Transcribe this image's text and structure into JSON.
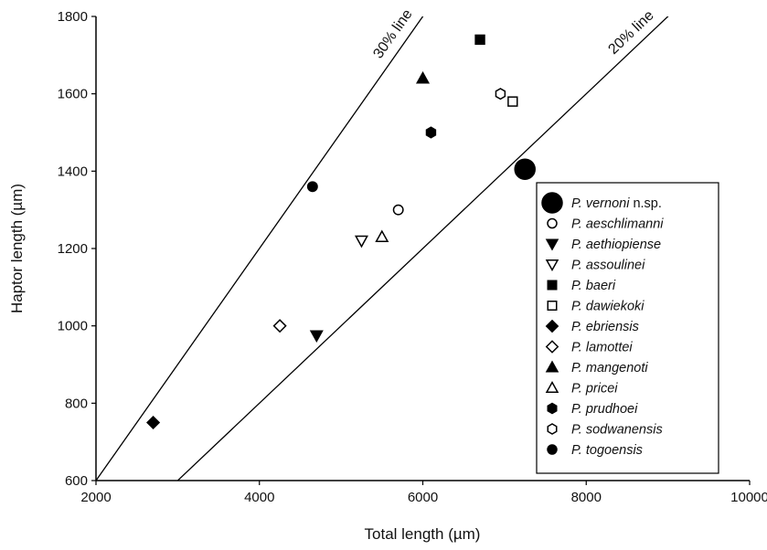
{
  "chart_data": {
    "type": "scatter",
    "xlabel": "Total length (µm)",
    "ylabel": "Haptor length (µm)",
    "xlim": [
      2000,
      10000
    ],
    "ylim": [
      600,
      1800
    ],
    "xticks": [
      "2000",
      "4000",
      "6000",
      "8000",
      "10000"
    ],
    "yticks": [
      "600",
      "800",
      "1000",
      "1200",
      "1400",
      "1600",
      "1800"
    ],
    "grid": false,
    "legend_position": "bottom-right",
    "reference_lines": [
      {
        "label": "30% line",
        "slope": 0.3
      },
      {
        "label": "20% line",
        "slope": 0.2
      }
    ],
    "series": [
      {
        "genus": "P.",
        "species": "vernoni",
        "suffix": " n.sp.",
        "marker": "circle-filled",
        "size": "large",
        "points": [
          {
            "x": 7250,
            "y": 1405
          }
        ]
      },
      {
        "genus": "P.",
        "species": "aeschlimanni",
        "suffix": "",
        "marker": "circle-open",
        "size": "normal",
        "points": [
          {
            "x": 5700,
            "y": 1300
          }
        ]
      },
      {
        "genus": "P.",
        "species": "aethiopiense",
        "suffix": "",
        "marker": "triangle-down-filled",
        "size": "normal",
        "points": [
          {
            "x": 4700,
            "y": 975
          }
        ]
      },
      {
        "genus": "P.",
        "species": "assoulinei",
        "suffix": "",
        "marker": "triangle-down-open",
        "size": "normal",
        "points": [
          {
            "x": 5250,
            "y": 1220
          }
        ]
      },
      {
        "genus": "P.",
        "species": "baeri",
        "suffix": "",
        "marker": "square-filled",
        "size": "normal",
        "points": [
          {
            "x": 6700,
            "y": 1740
          }
        ]
      },
      {
        "genus": "P.",
        "species": "dawiekoki",
        "suffix": "",
        "marker": "square-open",
        "size": "normal",
        "points": [
          {
            "x": 7100,
            "y": 1580
          }
        ]
      },
      {
        "genus": "P.",
        "species": "ebriensis",
        "suffix": "",
        "marker": "diamond-filled",
        "size": "normal",
        "points": [
          {
            "x": 2700,
            "y": 750
          }
        ]
      },
      {
        "genus": "P.",
        "species": "lamottei",
        "suffix": "",
        "marker": "diamond-open",
        "size": "normal",
        "points": [
          {
            "x": 4250,
            "y": 1000
          }
        ]
      },
      {
        "genus": "P.",
        "species": "mangenoti",
        "suffix": "",
        "marker": "triangle-up-filled",
        "size": "normal",
        "points": [
          {
            "x": 6000,
            "y": 1640
          }
        ]
      },
      {
        "genus": "P.",
        "species": "pricei",
        "suffix": "",
        "marker": "triangle-up-open",
        "size": "normal",
        "points": [
          {
            "x": 5500,
            "y": 1230
          }
        ]
      },
      {
        "genus": "P.",
        "species": "prudhoei",
        "suffix": "",
        "marker": "hexagon-filled",
        "size": "normal",
        "points": [
          {
            "x": 6100,
            "y": 1500
          }
        ]
      },
      {
        "genus": "P.",
        "species": "sodwanensis",
        "suffix": "",
        "marker": "hexagon-open",
        "size": "normal",
        "points": [
          {
            "x": 6950,
            "y": 1600
          }
        ]
      },
      {
        "genus": "P.",
        "species": "togoensis",
        "suffix": "",
        "marker": "circle-filled",
        "size": "normal",
        "points": [
          {
            "x": 4650,
            "y": 1360
          }
        ]
      }
    ]
  }
}
